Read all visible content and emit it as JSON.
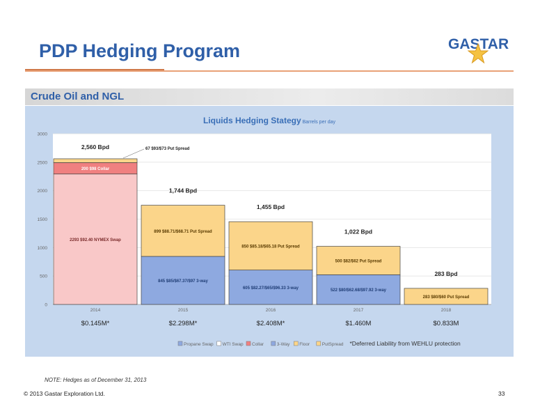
{
  "header": {
    "title": "PDP Hedging Program",
    "logo_text": "GASTAR"
  },
  "section": {
    "title": "Crude Oil and NGL"
  },
  "colors": {
    "title_blue": "#2f5fa8",
    "collar": "#f08080",
    "three_way": "#8ea9e0",
    "put_spread": "#fbd58a",
    "nymex_swap": "#f9c8c8",
    "panel": "#c5d7ee",
    "plot": "#ffffff"
  },
  "chart_data": {
    "type": "bar",
    "title": "Liquids Hedging Stategy",
    "title_suffix": "Barrels per day",
    "ylim": [
      0,
      3000
    ],
    "yticks": [
      0,
      500,
      1000,
      1500,
      2000,
      2500,
      3000
    ],
    "categories": [
      "2014",
      "2015",
      "2016",
      "2017",
      "2018"
    ],
    "totals_labels": [
      "2,560 Bpd",
      "1,744 Bpd",
      "1,455 Bpd",
      "1,022 Bpd",
      "283 Bpd"
    ],
    "totals": [
      2560,
      1744,
      1455,
      1022,
      283
    ],
    "liabilities": [
      "$0.145M*",
      "$2.298M*",
      "$2.408M*",
      "$1.460M",
      "$0.833M"
    ],
    "segments": [
      [
        {
          "type": "nymex_swap",
          "value": 2293,
          "label": "2293 $92.40 NYMEX Swap"
        },
        {
          "type": "collar",
          "value": 200,
          "label": "200 $98 Collar"
        },
        {
          "type": "put_spread",
          "value": 67,
          "label": "67 $93/$73 Put Spread"
        }
      ],
      [
        {
          "type": "three_way",
          "value": 845,
          "label": "845 $85/$67.37/$97 3-way"
        },
        {
          "type": "put_spread",
          "value": 899,
          "label": "899 $88.71/$68.71 Put Spread"
        }
      ],
      [
        {
          "type": "three_way",
          "value": 605,
          "label": "605 $82.27/$65/$96.33 3-way"
        },
        {
          "type": "put_spread",
          "value": 850,
          "label": "850 $85.18/$65.18 Put Spread"
        }
      ],
      [
        {
          "type": "three_way",
          "value": 522,
          "label": "522 $80/$62.68/$97.92 3-way"
        },
        {
          "type": "put_spread",
          "value": 500,
          "label": "500 $82/$62 Put Spread"
        }
      ],
      [
        {
          "type": "put_spread",
          "value": 283,
          "label": "283 $80/$60 Put Spread"
        }
      ]
    ],
    "legend": [
      {
        "name": "Propane Swap",
        "color": "#8ea9e0"
      },
      {
        "name": "WTI Swap",
        "color": "#ffffff"
      },
      {
        "name": "Collar",
        "color": "#f08080"
      },
      {
        "name": "3-Way",
        "color": "#8ea9e0"
      },
      {
        "name": "Floor",
        "color": "#fbd58a"
      },
      {
        "name": "PutSpread",
        "color": "#fbd58a"
      }
    ],
    "footnote": "*Deferred Liability from WEHLU protection"
  },
  "footer": {
    "note": "NOTE: Hedges as of December 31, 2013",
    "copyright": "© 2013 Gastar Exploration Ltd.",
    "page_number": "33"
  }
}
